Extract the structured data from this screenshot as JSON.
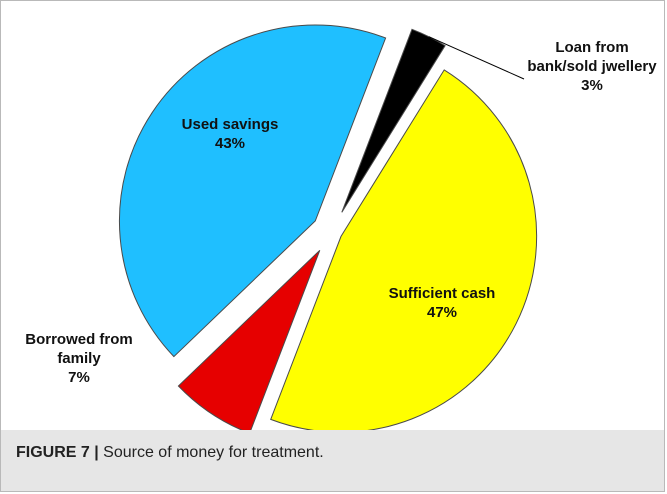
{
  "chart_data": {
    "type": "pie",
    "exploded": true,
    "slices": [
      {
        "label_lines": [
          "Loan from",
          "bank/sold jwellery"
        ],
        "pct_label": "3%",
        "value": 3,
        "color": "#000000"
      },
      {
        "label_lines": [
          "Sufficient cash"
        ],
        "pct_label": "47%",
        "value": 47,
        "color": "#ffff00"
      },
      {
        "label_lines": [
          "Borrowed from",
          "family"
        ],
        "pct_label": "7%",
        "value": 7,
        "color": "#e60000"
      },
      {
        "label_lines": [
          "Used savings"
        ],
        "pct_label": "43%",
        "value": 43,
        "color": "#1fbfff"
      }
    ]
  },
  "caption": {
    "figure_label": "FIGURE 7 |",
    "text": " Source of money for treatment."
  }
}
